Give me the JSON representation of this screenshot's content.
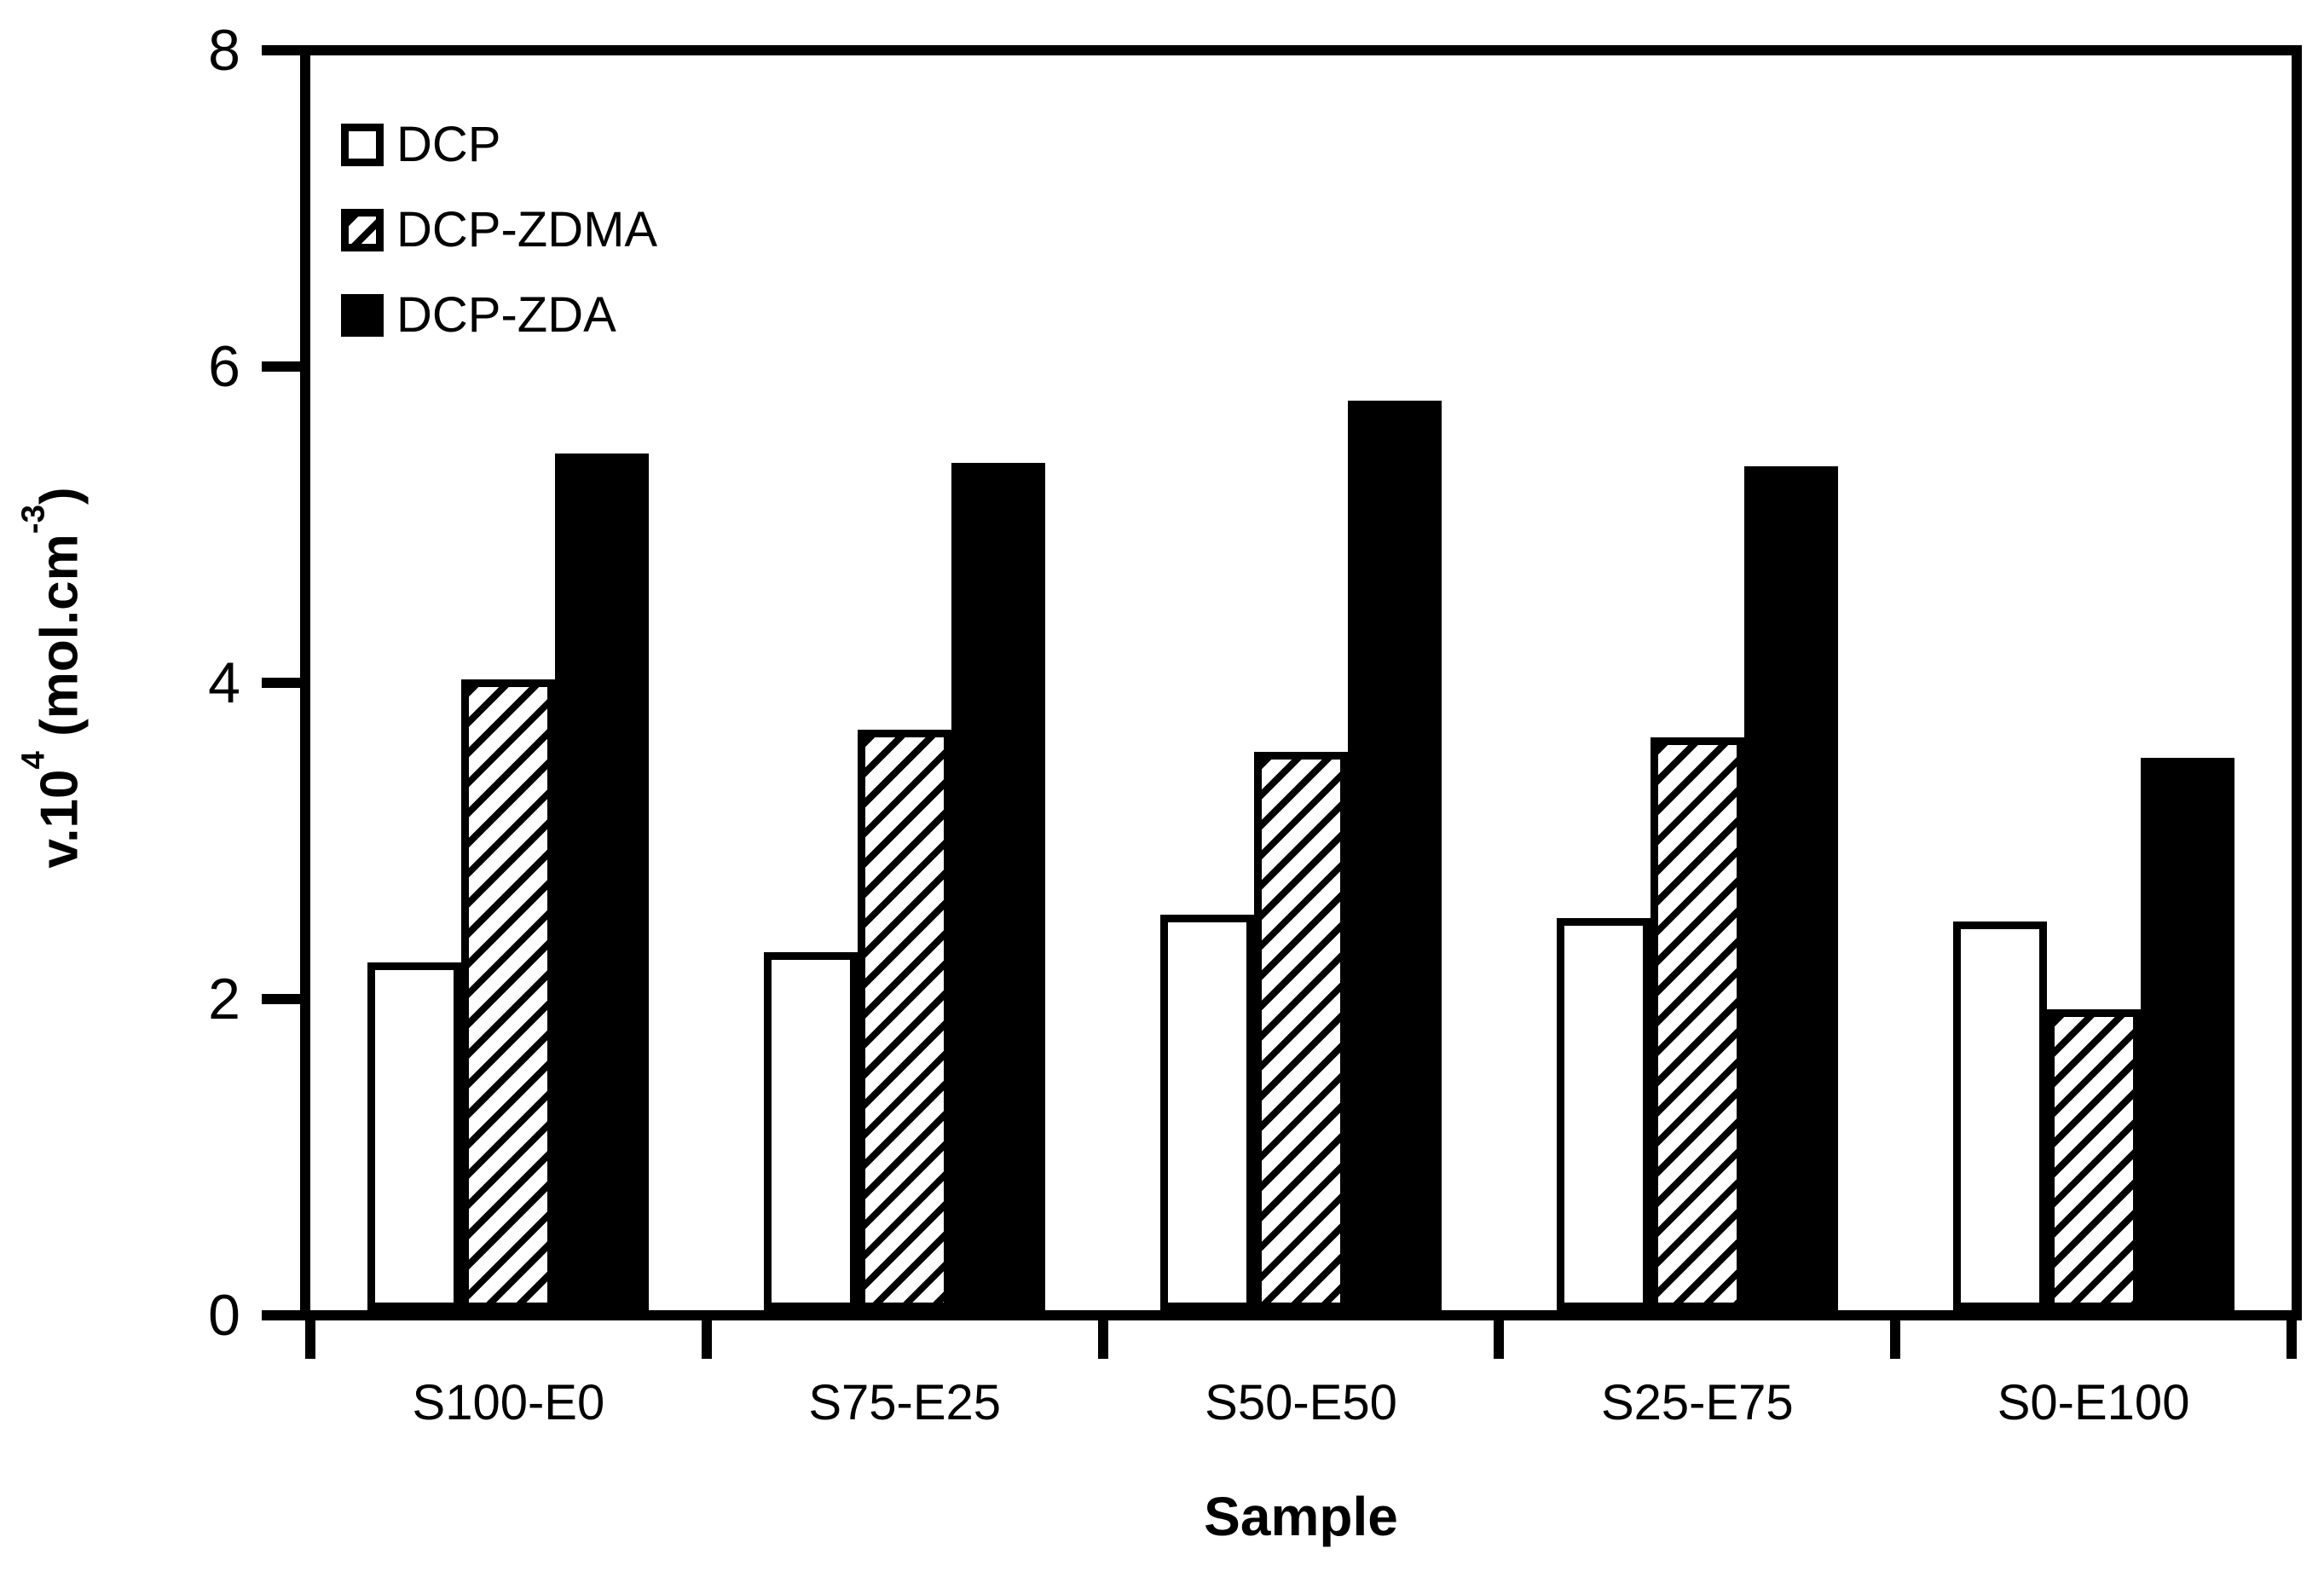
{
  "figure": {
    "background": "#ffffff",
    "ink": "#000000"
  },
  "chart_data": {
    "type": "bar",
    "title": "",
    "xlabel": "Sample",
    "ylabel": "v.10⁴ (mol.cm⁻³)",
    "ylabel_parts": {
      "pre": "v.10",
      "sup1": "4",
      "mid": " (mol.cm",
      "sup2": "-3",
      "post": ")"
    },
    "categories": [
      "S100-E0",
      "S75-E25",
      "S50-E50",
      "S25-E75",
      "S0-E100"
    ],
    "series": [
      {
        "name": "DCP",
        "fill": "white",
        "values": [
          2.22,
          2.28,
          2.52,
          2.5,
          2.48
        ]
      },
      {
        "name": "DCP-ZDMA",
        "fill": "hatch",
        "values": [
          4.02,
          3.7,
          3.56,
          3.65,
          1.92
        ]
      },
      {
        "name": "DCP-ZDA",
        "fill": "black",
        "values": [
          5.46,
          5.4,
          5.8,
          5.38,
          3.52
        ]
      }
    ],
    "ylim": [
      0,
      8
    ],
    "yticks": [
      0,
      2,
      4,
      6,
      8
    ],
    "grid": false,
    "legend": {
      "position": "top-left-inside",
      "entries": [
        "DCP",
        "DCP-ZDMA",
        "DCP-ZDA"
      ]
    }
  }
}
